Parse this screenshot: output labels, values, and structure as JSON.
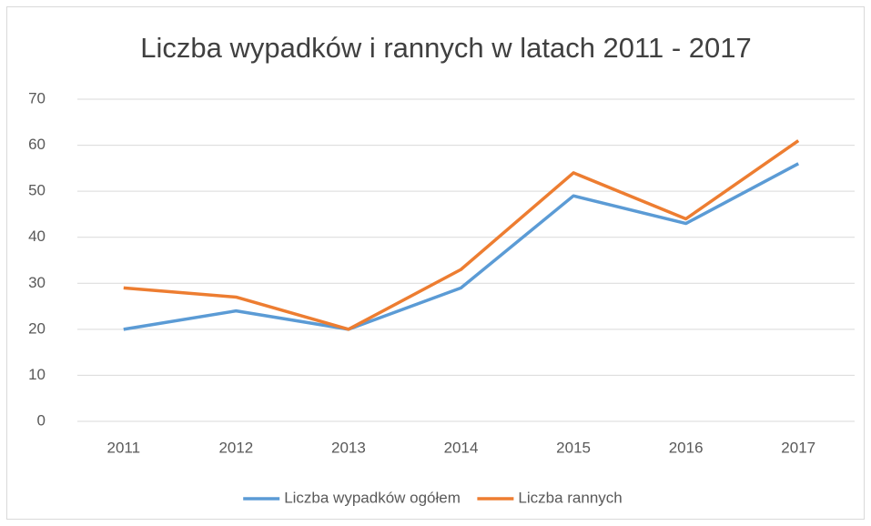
{
  "chart_data": {
    "type": "line",
    "title": "Liczba wypadków i rannych w latach 2011 - 2017",
    "categories": [
      "2011",
      "2012",
      "2013",
      "2014",
      "2015",
      "2016",
      "2017"
    ],
    "series": [
      {
        "name": "Liczba wypadków ogółem",
        "color": "#5b9bd5",
        "values": [
          20,
          24,
          20,
          29,
          49,
          43,
          56
        ]
      },
      {
        "name": "Liczba rannych",
        "color": "#ed7d31",
        "values": [
          29,
          27,
          20,
          33,
          54,
          44,
          61
        ]
      }
    ],
    "ylim": [
      0,
      70
    ],
    "yticks": [
      0,
      10,
      20,
      30,
      40,
      50,
      60,
      70
    ],
    "grid": true,
    "legend": "bottom"
  }
}
